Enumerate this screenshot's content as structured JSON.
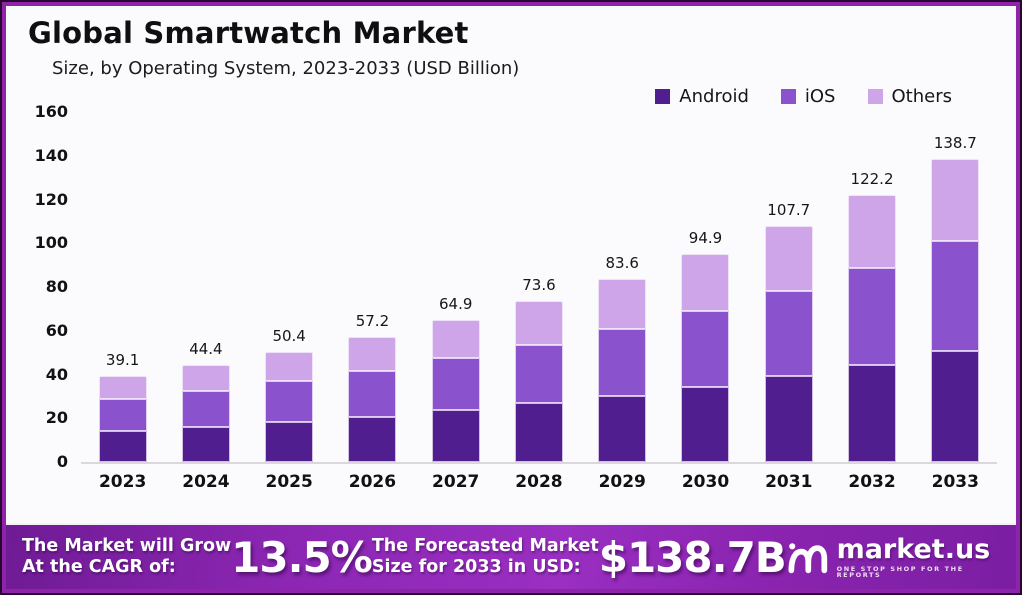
{
  "frame": {
    "border_color": "#8e24aa"
  },
  "header": {
    "title": "Global Smartwatch Market",
    "subtitle": "Size, by Operating System, 2023-2033 (USD Billion)"
  },
  "chart_data": {
    "type": "bar",
    "stacked": true,
    "title": "Global Smartwatch Market Size, by Operating System, 2023-2033 (USD Billion)",
    "categories": [
      "2023",
      "2024",
      "2025",
      "2026",
      "2027",
      "2028",
      "2029",
      "2030",
      "2031",
      "2032",
      "2033"
    ],
    "totals": [
      39.1,
      44.4,
      50.4,
      57.2,
      64.9,
      73.6,
      83.6,
      94.9,
      107.7,
      122.2,
      138.7
    ],
    "series": [
      {
        "name": "Android",
        "color": "#511e8f",
        "values": [
          14.2,
          16.1,
          18.3,
          20.8,
          23.6,
          26.8,
          30.4,
          34.5,
          39.2,
          44.5,
          50.6
        ]
      },
      {
        "name": "iOS",
        "color": "#8a53cd",
        "values": [
          14.6,
          16.4,
          18.6,
          21.0,
          23.8,
          26.9,
          30.5,
          34.6,
          39.2,
          44.4,
          50.3
        ]
      },
      {
        "name": "Others",
        "color": "#cda5e8",
        "values": [
          10.3,
          11.9,
          13.5,
          15.4,
          17.5,
          19.9,
          22.7,
          25.8,
          29.3,
          33.3,
          37.8
        ]
      }
    ],
    "xlabel": "",
    "ylabel": "",
    "ylim": [
      0,
      160
    ],
    "yticks": [
      0,
      20,
      40,
      60,
      80,
      100,
      120,
      140,
      160
    ],
    "grid": false,
    "legend_position": "top-right",
    "note": "series values are estimates read from segment boundaries; totals are the printed data labels"
  },
  "banner": {
    "cagr_label_line1": "The Market will Grow",
    "cagr_label_line2": "At the CAGR of:",
    "cagr_value": "13.5%",
    "forecast_label_line1": "The Forecasted Market",
    "forecast_label_line2": "Size for 2033 in USD:",
    "forecast_value": "$138.7B",
    "brand": "market.us",
    "brand_tagline": "ONE STOP SHOP FOR THE REPORTS"
  }
}
